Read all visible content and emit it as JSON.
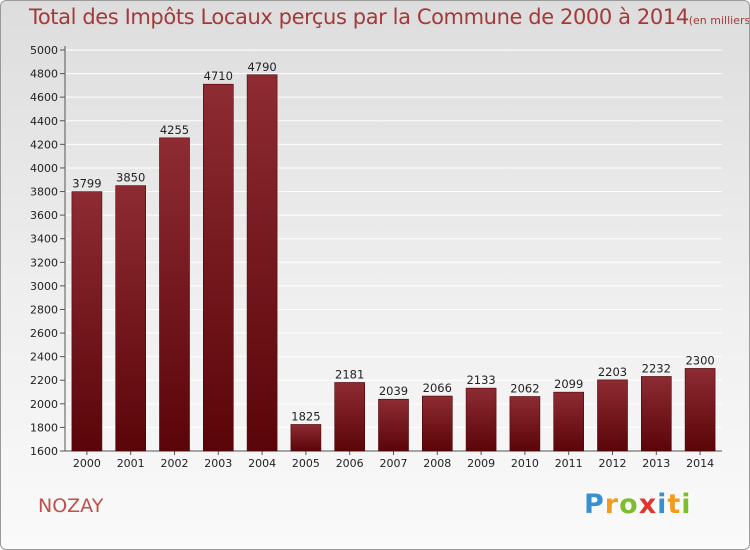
{
  "chart_data": {
    "type": "bar",
    "title": "Total des Impôts Locaux perçus par la Commune de 2000 à 2014",
    "unit": "(en milliers d'€)",
    "categories": [
      "2000",
      "2001",
      "2002",
      "2003",
      "2004",
      "2005",
      "2006",
      "2007",
      "2008",
      "2009",
      "2010",
      "2011",
      "2012",
      "2013",
      "2014"
    ],
    "values": [
      3799,
      3850,
      4255,
      4710,
      4790,
      1825,
      2181,
      2039,
      2066,
      2133,
      2062,
      2099,
      2203,
      2232,
      2300
    ],
    "ylim": [
      1600,
      5000
    ],
    "yticks": [
      1600,
      1800,
      2000,
      2200,
      2400,
      2600,
      2800,
      3000,
      3200,
      3400,
      3600,
      3800,
      4000,
      4200,
      4400,
      4600,
      4800,
      5000
    ],
    "xlabel": "",
    "ylabel": "",
    "grid": true,
    "bar_color": "#7a1a22"
  },
  "commune": "NOZAY",
  "logo": {
    "letters": [
      "P",
      "r",
      "o",
      "x",
      "i",
      "t",
      "i"
    ],
    "colors": [
      "#3a8fd0",
      "#f29b1c",
      "#7dbd2e",
      "#e2342a",
      "#3a8fd0",
      "#f29b1c",
      "#7dbd2e"
    ]
  }
}
